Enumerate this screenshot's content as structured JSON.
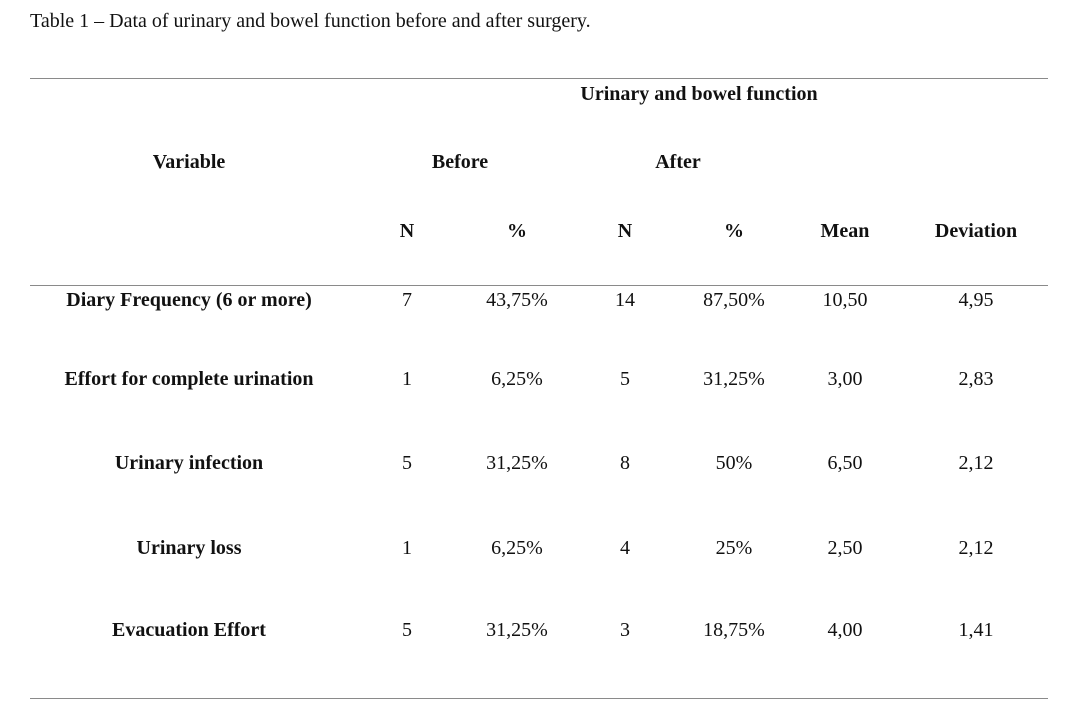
{
  "caption": "Table 1 – Data of urinary and bowel function before and after surgery.",
  "header": {
    "group_title": "Urinary and bowel function",
    "variable_label": "Variable",
    "before_label": "Before",
    "after_label": "After",
    "columns": [
      "N",
      "%",
      "N",
      "%",
      "Mean",
      "Deviation"
    ]
  },
  "rows": [
    {
      "variable": "Diary Frequency (6 or more)",
      "before_n": "7",
      "before_pct": "43,75%",
      "after_n": "14",
      "after_pct": "87,50%",
      "mean": "10,50",
      "deviation": "4,95"
    },
    {
      "variable": "Effort for complete urination",
      "before_n": "1",
      "before_pct": "6,25%",
      "after_n": "5",
      "after_pct": "31,25%",
      "mean": "3,00",
      "deviation": "2,83"
    },
    {
      "variable": "Urinary infection",
      "before_n": "5",
      "before_pct": "31,25%",
      "after_n": "8",
      "after_pct": "50%",
      "mean": "6,50",
      "deviation": "2,12"
    },
    {
      "variable": "Urinary loss",
      "before_n": "1",
      "before_pct": "6,25%",
      "after_n": "4",
      "after_pct": "25%",
      "mean": "2,50",
      "deviation": "2,12"
    },
    {
      "variable": "Evacuation Effort",
      "before_n": "5",
      "before_pct": "31,25%",
      "after_n": "3",
      "after_pct": "18,75%",
      "mean": "4,00",
      "deviation": "1,41"
    }
  ]
}
